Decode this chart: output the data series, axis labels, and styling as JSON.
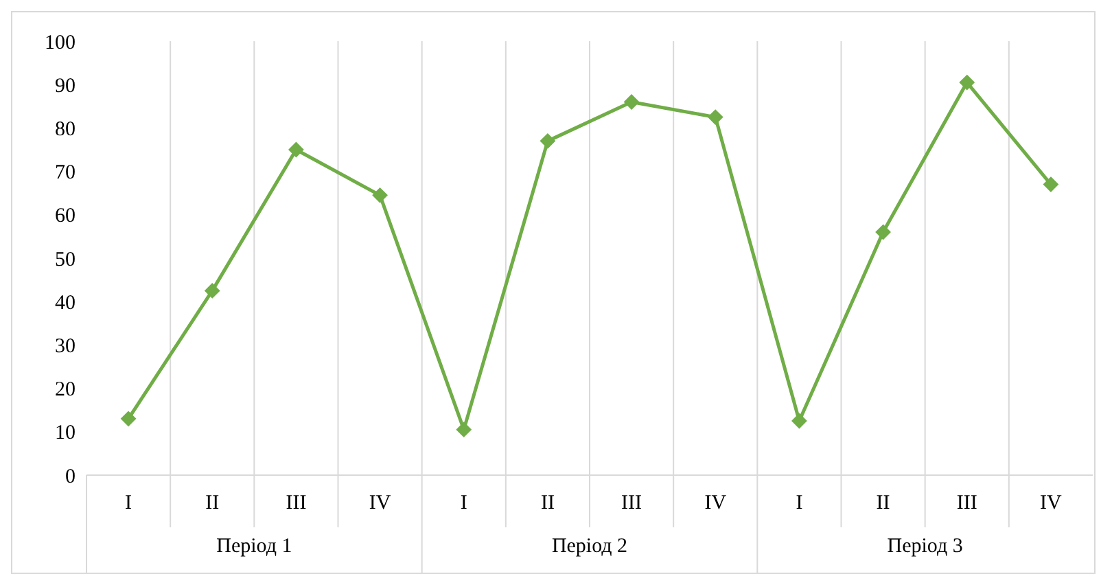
{
  "chart_data": {
    "type": "line",
    "categories": [
      "I",
      "II",
      "III",
      "IV",
      "I",
      "II",
      "III",
      "IV",
      "I",
      "II",
      "III",
      "IV"
    ],
    "series": [
      {
        "color": "#70ad47",
        "values": [
          13,
          42.5,
          75,
          64.5,
          10.5,
          77,
          86,
          82.5,
          12.5,
          56,
          90.5,
          67
        ]
      }
    ],
    "annotations": [
      "Період 1",
      "Період 2",
      "Період 3"
    ],
    "ylim": [
      0,
      100
    ],
    "yticks": [
      0,
      10,
      20,
      30,
      40,
      50,
      60,
      70,
      80,
      90,
      100
    ],
    "grid": "x",
    "marker": "diamond"
  }
}
